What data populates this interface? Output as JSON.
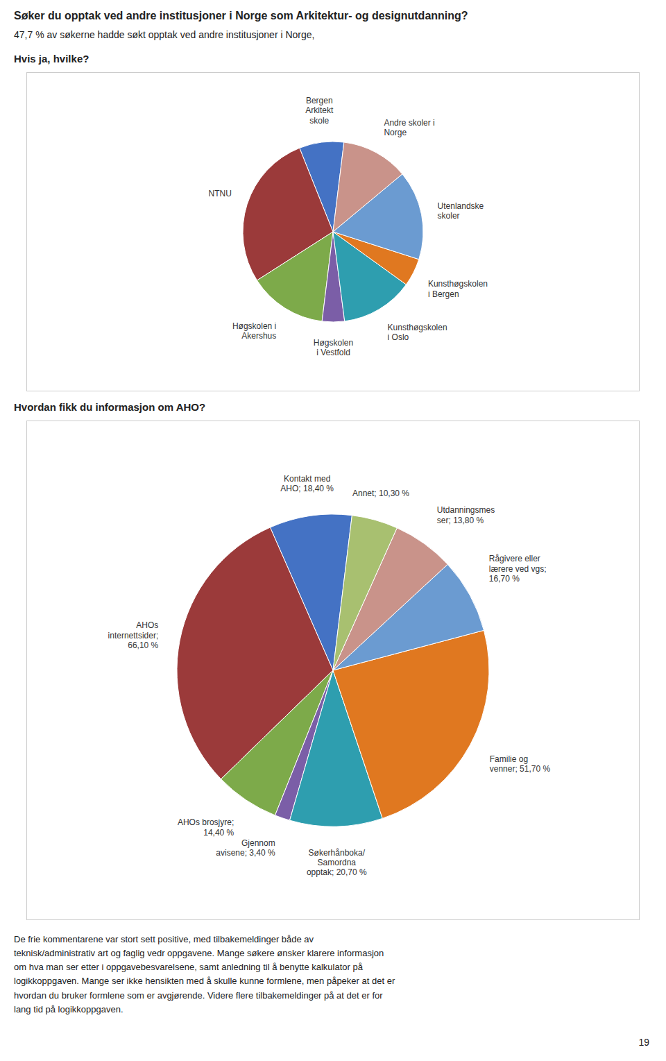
{
  "title": "Søker du opptak ved andre institusjoner i Norge som Arkitektur- og designutdanning?",
  "subtitle": "47,7 % av søkerne hadde søkt opptak ved andre institusjoner i Norge,",
  "chart_data": [
    {
      "type": "pie",
      "title": "Hvis ja, hvilke?",
      "categories": [
        "Bergen\nArkitekt\nskole",
        "NTNU",
        "Høgskolen i\nAkershus",
        "Høgskolen\ni Vestfold",
        "Kunsthøgskolen\ni Oslo",
        "Kunsthøgskolen\ni Bergen",
        "Utenlandske\nskoler",
        "Andre skoler i\nNorge"
      ],
      "values": [
        8,
        28,
        14,
        4,
        13,
        5,
        16,
        12
      ],
      "colors": [
        "#4472C4",
        "#9B3A3A",
        "#7DAA4A",
        "#7B5EA7",
        "#2E9EAF",
        "#E07820",
        "#6B9BD1",
        "#C9938A"
      ]
    },
    {
      "type": "pie",
      "title": "Hvordan fikk du informasjon om AHO?",
      "categories": [
        "Kontakt med\nAHO; 18,40 %",
        "AHOs\ninternettsider;\n66,10 %",
        "AHOs brosjyre;\n14,40 %",
        "Gjennom\navisene; 3,40 %",
        "Søkerhånboka/\nSamordna\nopptak; 20,70 %",
        "Familie og\nvenner; 51,70 %",
        "Rågivere eller\nlærere ved vgs;\n16,70 %",
        "Utdanningsmes\nser; 13,80 %",
        "Annet; 10,30 %"
      ],
      "values": [
        18.4,
        66.1,
        14.4,
        3.4,
        20.7,
        51.7,
        16.7,
        13.8,
        10.3
      ],
      "colors": [
        "#4472C4",
        "#9B3A3A",
        "#7DAA4A",
        "#7B5EA7",
        "#2E9EAF",
        "#E07820",
        "#6B9BD1",
        "#C9938A",
        "#A8C070"
      ]
    }
  ],
  "annotations": [
    "De frie kommentarene var stort sett positive, med tilbakemeldinger både av\nteknisk/administrativ art og faglig vedr oppgavene. Mange søkere ønsker klarere informasjon\nom hva man ser etter i oppgavebesvarelsene, samt anledning til å benytte kalkulator på\nlogikkoppgaven. Mange ser ikke hensikten med å skulle kunne formlene, men påpeker at det er\nhvordan du bruker formlene som er avgjørende. Videre flere tilbakemeldinger på at det er for\nlang tid på logikkoppgaven.",
    "19"
  ]
}
